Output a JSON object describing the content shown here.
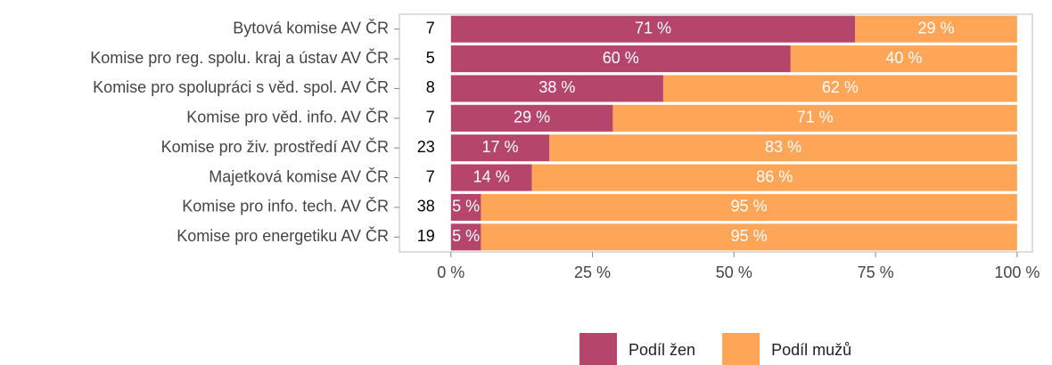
{
  "chart_data": {
    "type": "stacked_barh",
    "categories": [
      "Bytová komise AV ČR",
      "Komise pro reg. spolu. kraj a ústav AV ČR",
      "Komise pro spolupráci s věd. spol. AV ČR",
      "Komise pro věd. info. AV ČR",
      "Komise pro živ. prostředí AV ČR",
      "Majetková komise AV ČR",
      "Komise pro info. tech. AV ČR",
      "Komise pro energetiku AV ČR"
    ],
    "counts": [
      7,
      5,
      8,
      7,
      23,
      7,
      38,
      19
    ],
    "series": [
      {
        "name": "Podíl žen",
        "color": "#b5456b",
        "values": [
          71.4,
          60,
          37.5,
          28.6,
          17.4,
          14.3,
          5.3,
          5.3
        ],
        "value_labels": [
          "71 %",
          "60 %",
          "38 %",
          "29 %",
          "17 %",
          "14 %",
          "5 %",
          "5 %"
        ]
      },
      {
        "name": "Podíl mužů",
        "color": "#fea557",
        "values": [
          28.6,
          40,
          62.5,
          71.4,
          82.6,
          85.7,
          94.7,
          94.7
        ],
        "value_labels": [
          "29 %",
          "40 %",
          "62 %",
          "71 %",
          "83 %",
          "86 %",
          "95 %",
          "95 %"
        ]
      }
    ],
    "xlim": [
      -9.1,
      102.7
    ],
    "xticks": [
      {
        "value": 0,
        "label": "0 %"
      },
      {
        "value": 25,
        "label": "25 %"
      },
      {
        "value": 50,
        "label": "50 %"
      },
      {
        "value": 75,
        "label": "75 %"
      },
      {
        "value": 100,
        "label": "100 %"
      }
    ],
    "legend": "bottom"
  }
}
